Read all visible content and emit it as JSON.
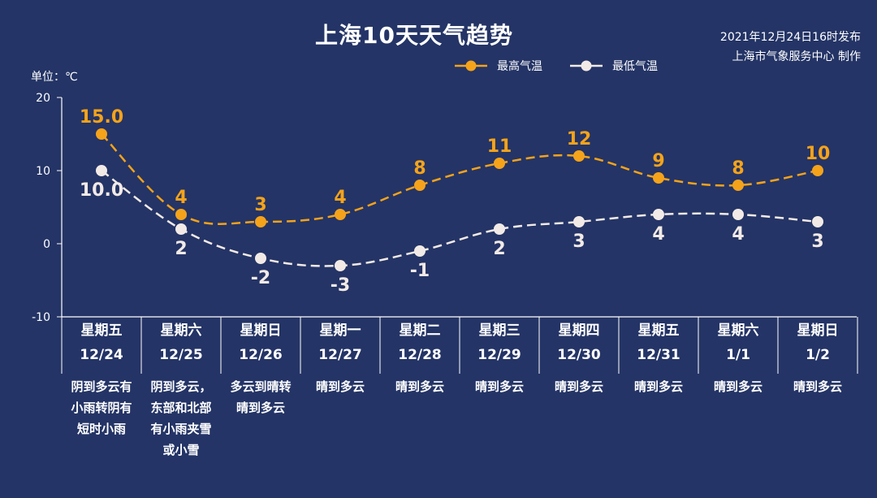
{
  "header": {
    "title": "上海10天天气趋势",
    "publish_time": "2021年12月24日16时发布",
    "publisher": "上海市气象服务中心 制作",
    "unit": "单位：℃"
  },
  "colors": {
    "background": "#243466",
    "high": "#f5a31a",
    "low": "#f2eae6",
    "axis": "#ffffff"
  },
  "chart_data": {
    "type": "line",
    "ylim": [
      -10,
      20
    ],
    "yticks": [
      20,
      10,
      0,
      -10
    ],
    "grid": false,
    "legend": "top",
    "series": [
      {
        "name": "最高气温",
        "values": [
          15.0,
          4,
          3,
          4,
          8,
          11,
          12,
          9,
          8,
          10
        ],
        "labels": [
          "15.0",
          "4",
          "3",
          "4",
          "8",
          "11",
          "12",
          "9",
          "8",
          "10"
        ]
      },
      {
        "name": "最低气温",
        "values": [
          10.0,
          2,
          -2,
          -3,
          -1,
          2,
          3,
          4,
          4,
          3
        ],
        "labels": [
          "10.0",
          "2",
          "-2",
          "-3",
          "-1",
          "2",
          "3",
          "4",
          "4",
          "3"
        ]
      }
    ],
    "days": [
      {
        "weekday": "星期五",
        "date": "12/24",
        "weather": [
          "阴到多云有",
          "小雨转阴有",
          "短时小雨"
        ]
      },
      {
        "weekday": "星期六",
        "date": "12/25",
        "weather": [
          "阴到多云，",
          "东部和北部",
          "有小雨夹雪",
          "或小雪"
        ]
      },
      {
        "weekday": "星期日",
        "date": "12/26",
        "weather": [
          "多云到晴转",
          "晴到多云"
        ]
      },
      {
        "weekday": "星期一",
        "date": "12/27",
        "weather": [
          "晴到多云"
        ]
      },
      {
        "weekday": "星期二",
        "date": "12/28",
        "weather": [
          "晴到多云"
        ]
      },
      {
        "weekday": "星期三",
        "date": "12/29",
        "weather": [
          "晴到多云"
        ]
      },
      {
        "weekday": "星期四",
        "date": "12/30",
        "weather": [
          "晴到多云"
        ]
      },
      {
        "weekday": "星期五",
        "date": "12/31",
        "weather": [
          "晴到多云"
        ]
      },
      {
        "weekday": "星期六",
        "date": "1/1",
        "weather": [
          "晴到多云"
        ]
      },
      {
        "weekday": "星期日",
        "date": "1/2",
        "weather": [
          "晴到多云"
        ]
      }
    ]
  }
}
